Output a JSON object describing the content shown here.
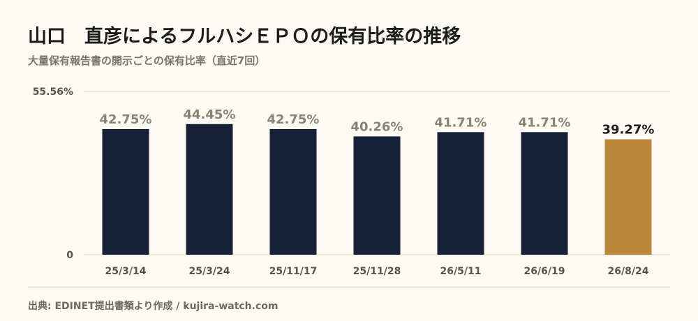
{
  "title": "山口　直彦によるフルハシＥＰＯの保有比率の推移",
  "subtitle": "大量保有報告書の開示ごとの保有比率（直近7回）",
  "source": "出典: EDINET提出書類より作成 / kujira-watch.com",
  "colors": {
    "bar": "#172039",
    "highlight": "#b8873b",
    "value_label": "#8a8170",
    "highlight_label": "#1c1c1c",
    "grid": "#ddd8c6",
    "axis_text": "#5a5448"
  },
  "chart_data": {
    "type": "bar",
    "categories": [
      "25/3/14",
      "25/3/24",
      "25/11/17",
      "25/11/28",
      "26/5/11",
      "26/6/19",
      "26/8/24"
    ],
    "values": [
      42.75,
      44.45,
      42.75,
      40.26,
      41.71,
      41.71,
      39.27
    ],
    "value_labels": [
      "42.75%",
      "44.45%",
      "42.75%",
      "40.26%",
      "41.71%",
      "41.71%",
      "39.27%"
    ],
    "ylim": [
      0,
      55.56
    ],
    "ytick_labels": [
      "0",
      "55.56%"
    ],
    "highlight_index": 6,
    "grid": true
  }
}
